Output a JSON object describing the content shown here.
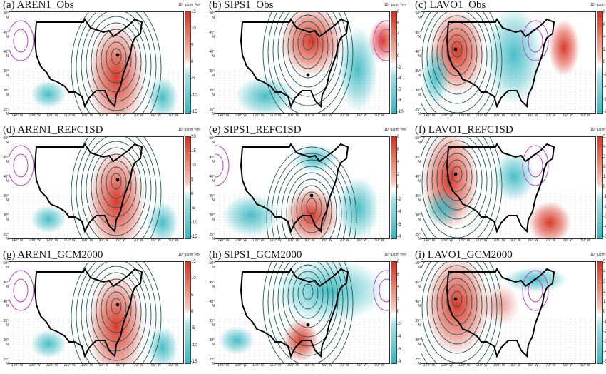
{
  "panels": [
    {
      "title": "(a) AREN1_Obs",
      "unit": "10⁻¹μg m⁻²m²",
      "ticks": [
        "15",
        "10",
        "5",
        "0",
        "-5",
        "-10",
        "-15"
      ],
      "scheme": "red-east",
      "city": "dot-east"
    },
    {
      "title": "(b) SIPS1_Obs",
      "unit": "10⁻¹μg m⁻²m²",
      "ticks": [
        "8",
        "6",
        "4",
        "2",
        "0",
        "-2",
        "-4",
        "-6",
        "-8",
        "-10"
      ],
      "scheme": "red-center",
      "city": "dot-center"
    },
    {
      "title": "(c) LAVO1_Obs",
      "unit": "10⁻¹μg m⁻²m²",
      "ticks": [
        "8",
        "6",
        "4",
        "2",
        "0",
        "-2",
        "-4",
        "-6",
        "-8"
      ],
      "scheme": "red-west",
      "city": "dot-west"
    },
    {
      "title": "(d) AREN1_REFC1SD",
      "unit": "10⁻¹μg m⁻²m²",
      "ticks": [
        "20",
        "15",
        "10",
        "5",
        "0",
        "-5",
        "-10",
        "-15"
      ],
      "scheme": "red-east",
      "city": "dot-east"
    },
    {
      "title": "(e) SIPS1_REFC1SD",
      "unit": "10⁻¹μg m⁻²m²",
      "ticks": [
        "8",
        "6",
        "4",
        "2",
        "0",
        "-2",
        "-4",
        "-6",
        "-8"
      ],
      "scheme": "red-south",
      "city": "dot-south"
    },
    {
      "title": "(f) LAVO1_REFC1SD",
      "unit": "10⁻¹μg m⁻²m²",
      "ticks": [
        "5",
        "4",
        "3",
        "2",
        "1",
        "0",
        "-1",
        "-2",
        "-3",
        "-4",
        "-5"
      ],
      "scheme": "red-west-cyan-center",
      "city": "dot-west"
    },
    {
      "title": "(g) AREN1_GCM2000",
      "unit": "10⁻¹μg m⁻²m²",
      "ticks": [
        "15",
        "10",
        "5",
        "0",
        "-5",
        "-10",
        "-15"
      ],
      "scheme": "red-east",
      "city": "dot-east"
    },
    {
      "title": "(h) SIPS1_GCM2000",
      "unit": "10⁻¹μg m⁻²m²",
      "ticks": [
        "8",
        "6",
        "4",
        "2",
        "0",
        "-2",
        "-4",
        "-6",
        "-8"
      ],
      "scheme": "cyan-north",
      "city": "dot-center"
    },
    {
      "title": "(i) LAVO1_GCM2000",
      "unit": "10⁻¹μg m⁻²m²",
      "ticks": [
        "5",
        "4",
        "3",
        "2",
        "1",
        "0",
        "-1",
        "-2",
        "-3",
        "-4",
        "-5"
      ],
      "scheme": "red-west-light",
      "city": "dot-west"
    }
  ],
  "lat_labels": [
    "50° N",
    "45° N",
    "40° N",
    "35° N",
    "30° N",
    "25° N"
  ],
  "lon_labels": [
    "140° W",
    "130° W",
    "120° W",
    "110° W",
    "100° W",
    "90° W",
    "80° W",
    "70° W",
    "60° W",
    "50° W"
  ],
  "colors": {
    "positive": "#d7301f",
    "negative": "#35b8c0",
    "contour": "#1f5a55",
    "contour_neg": "#c040c8",
    "coast": "#000000"
  }
}
